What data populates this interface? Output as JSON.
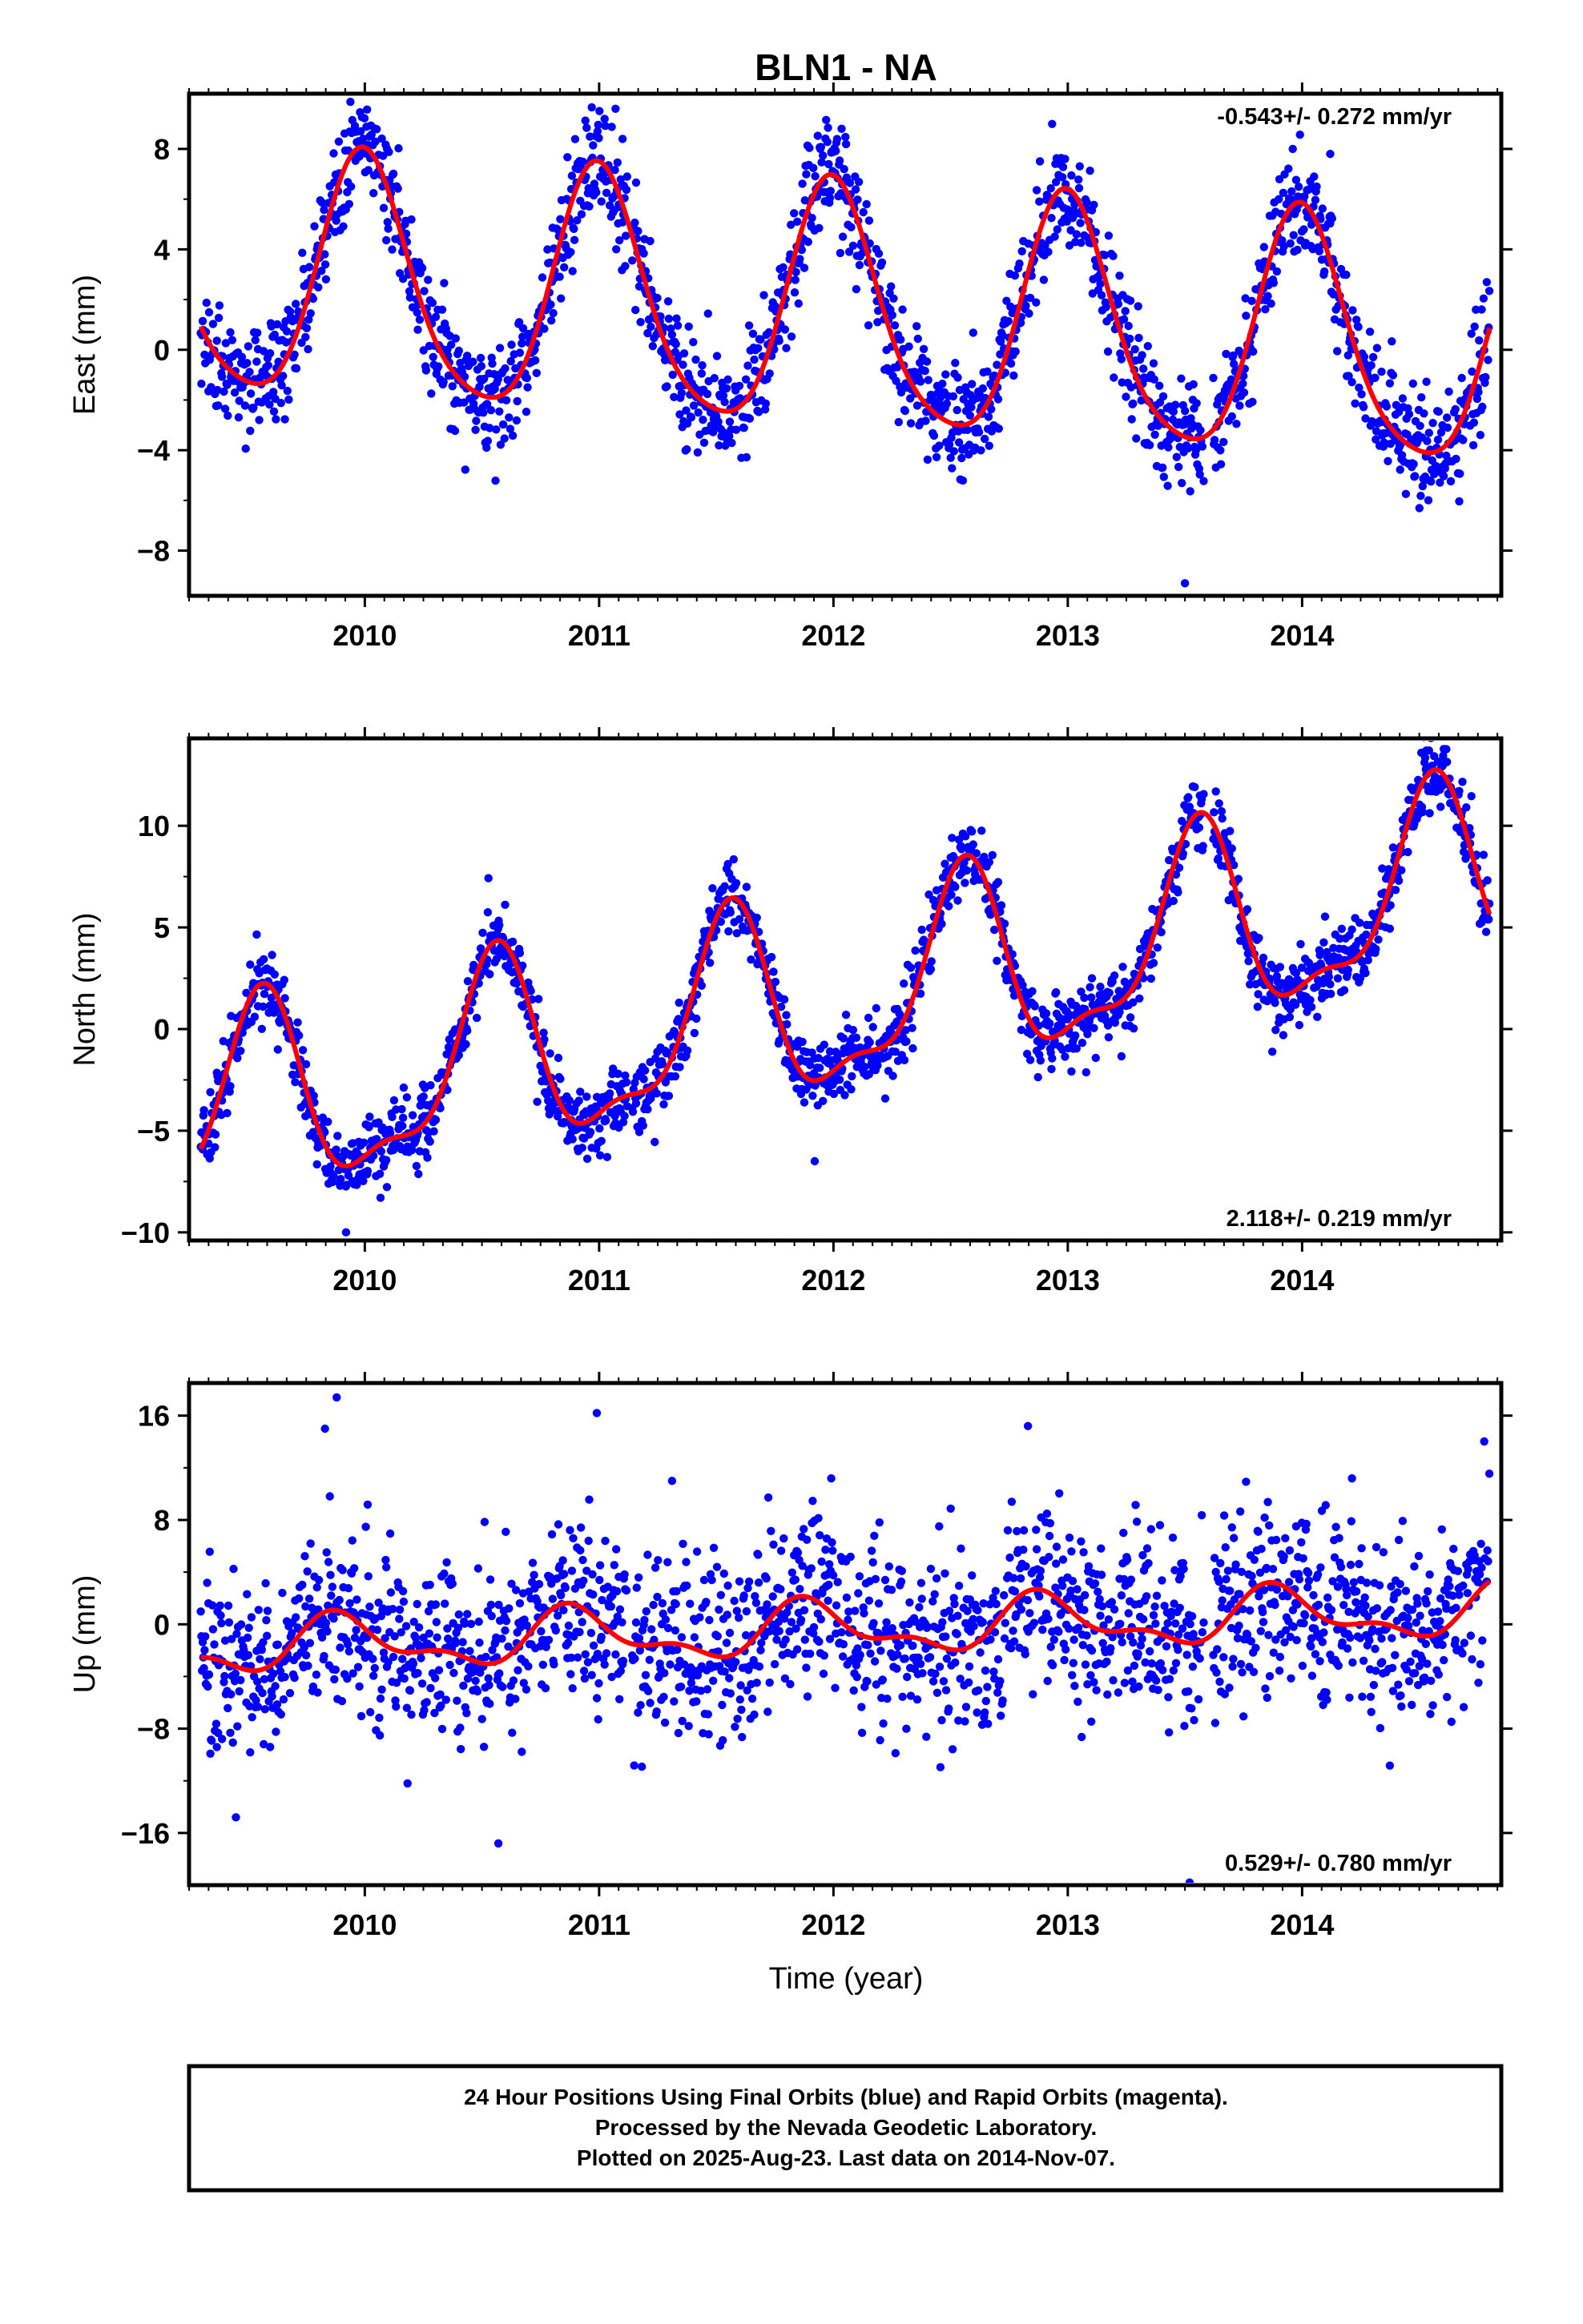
{
  "title": "BLN1 - NA",
  "colors": {
    "points": "#0000ff",
    "fit": "#ff0000",
    "frame": "#000000"
  },
  "chart_data": [
    {
      "type": "scatter",
      "panel": "east",
      "ylabel": "East (mm)",
      "xlim": [
        2009.25,
        2014.85
      ],
      "ylim": [
        -9.8,
        10.2
      ],
      "yticks": [
        8,
        4,
        0,
        -4,
        -8
      ],
      "ytick_labels": [
        "8",
        "4",
        "0",
        "−4",
        "−8"
      ],
      "xticks": [
        2010,
        2011,
        2012,
        2013,
        2014
      ],
      "rate": "-0.543+/- 0.272 mm/yr",
      "rate_position": "top-right",
      "fit_model": {
        "offset": 1.4,
        "trend": -0.55,
        "t0": 2012.0,
        "amp1": 4.8,
        "phase1": 2009.75,
        "amp2": 0.8,
        "phase2": 2009.85,
        "start": 2009.3,
        "end": 2014.8
      },
      "scatter": {
        "sigma": 1.1,
        "step": 0.00274,
        "outliers": [
          [
            2011.07,
            9.6
          ],
          [
            2011.1,
            8.4
          ],
          [
            2013.5,
            -9.3
          ],
          [
            2013.96,
            8.0
          ],
          [
            2014.12,
            7.8
          ]
        ]
      }
    },
    {
      "type": "scatter",
      "panel": "north",
      "ylabel": "North (mm)",
      "xlim": [
        2009.25,
        2014.85
      ],
      "ylim": [
        -10.4,
        14.3
      ],
      "yticks": [
        10,
        5,
        0,
        -5,
        -10
      ],
      "ytick_labels": [
        "10",
        "5",
        "0",
        "−5",
        "−10"
      ],
      "xticks": [
        2010,
        2011,
        2012,
        2013,
        2014
      ],
      "rate": "2.118+/- 0.219 mm/yr",
      "rate_position": "bottom-right",
      "fit_model": {
        "offset": 1.3,
        "trend": 2.1,
        "t0": 2012.0,
        "amp1": 4.5,
        "phase1": 2009.3,
        "amp2": 1.6,
        "phase2": 2009.45,
        "start": 2009.3,
        "end": 2014.8
      },
      "scatter": {
        "sigma": 0.9,
        "step": 0.00274,
        "outliers": [
          [
            2009.92,
            -10.0
          ],
          [
            2014.53,
            13.7
          ],
          [
            2011.92,
            -6.5
          ]
        ]
      }
    },
    {
      "type": "scatter",
      "panel": "up",
      "ylabel": "Up (mm)",
      "xlabel": "Time (year)",
      "xlim": [
        2009.25,
        2014.85
      ],
      "ylim": [
        -20.0,
        18.5
      ],
      "yticks": [
        16,
        8,
        0,
        -8,
        -16
      ],
      "ytick_labels": [
        "16",
        "8",
        "0",
        "−8",
        "−16"
      ],
      "xticks": [
        2010,
        2011,
        2012,
        2013,
        2014
      ],
      "rate": "0.529+/- 0.780 mm/yr",
      "rate_position": "bottom-right",
      "fit_model": {
        "offset": -0.4,
        "trend": 0.53,
        "t0": 2012.0,
        "amp1": 1.8,
        "phase1": 2009.65,
        "amp2": 0.9,
        "phase2": 2009.72,
        "start": 2009.3,
        "end": 2014.8
      },
      "scatter": {
        "sigma": 3.6,
        "step": 0.00274,
        "outliers": [
          [
            2009.88,
            17.4
          ],
          [
            2009.83,
            15.0
          ],
          [
            2010.99,
            16.2
          ],
          [
            2012.83,
            15.2
          ],
          [
            2009.45,
            -14.8
          ],
          [
            2013.52,
            -19.8
          ],
          [
            2010.57,
            -16.8
          ]
        ]
      }
    }
  ],
  "x_tick_labels": [
    "2010",
    "2011",
    "2012",
    "2013",
    "2014"
  ],
  "footer": {
    "line1": "24 Hour Positions Using Final Orbits (blue) and Rapid Orbits (magenta).",
    "line2": "Processed by the Nevada Geodetic Laboratory.",
    "line3": "Plotted on 2025-Aug-23. Last data on 2014-Nov-07."
  }
}
